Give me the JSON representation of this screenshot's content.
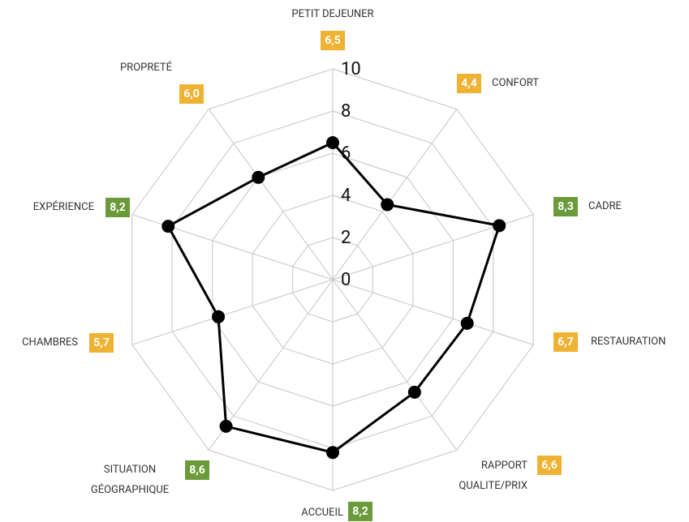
{
  "chart_data": {
    "type": "radar",
    "categories": [
      "PETIT DEJEUNER",
      "CONFORT",
      "CADRE",
      "RESTAURATION",
      "RAPPORT\nQUALITE/PRIX",
      "ACCUEIL",
      "SITUATION\nGÉOGRAPHIQUE",
      "CHAMBRES",
      "EXPÉRIENCE",
      "PROPRETÉ"
    ],
    "values": [
      6.5,
      4.4,
      8.3,
      6.7,
      6.6,
      8.2,
      8.6,
      5.7,
      8.2,
      6.0
    ],
    "value_labels": [
      "6,5",
      "4,4",
      "8,3",
      "6,7",
      "6,6",
      "8,2",
      "8,6",
      "5,7",
      "8,2",
      "6,0"
    ],
    "label_colors": [
      "#f0b232",
      "#f0b232",
      "#6b9a3a",
      "#f0b232",
      "#f0b232",
      "#6b9a3a",
      "#6b9a3a",
      "#f0b232",
      "#6b9a3a",
      "#f0b232"
    ],
    "color": "#000000",
    "rlim": [
      0,
      10
    ],
    "rticks": [
      0,
      2,
      4,
      6,
      8,
      10
    ],
    "grid": true
  }
}
